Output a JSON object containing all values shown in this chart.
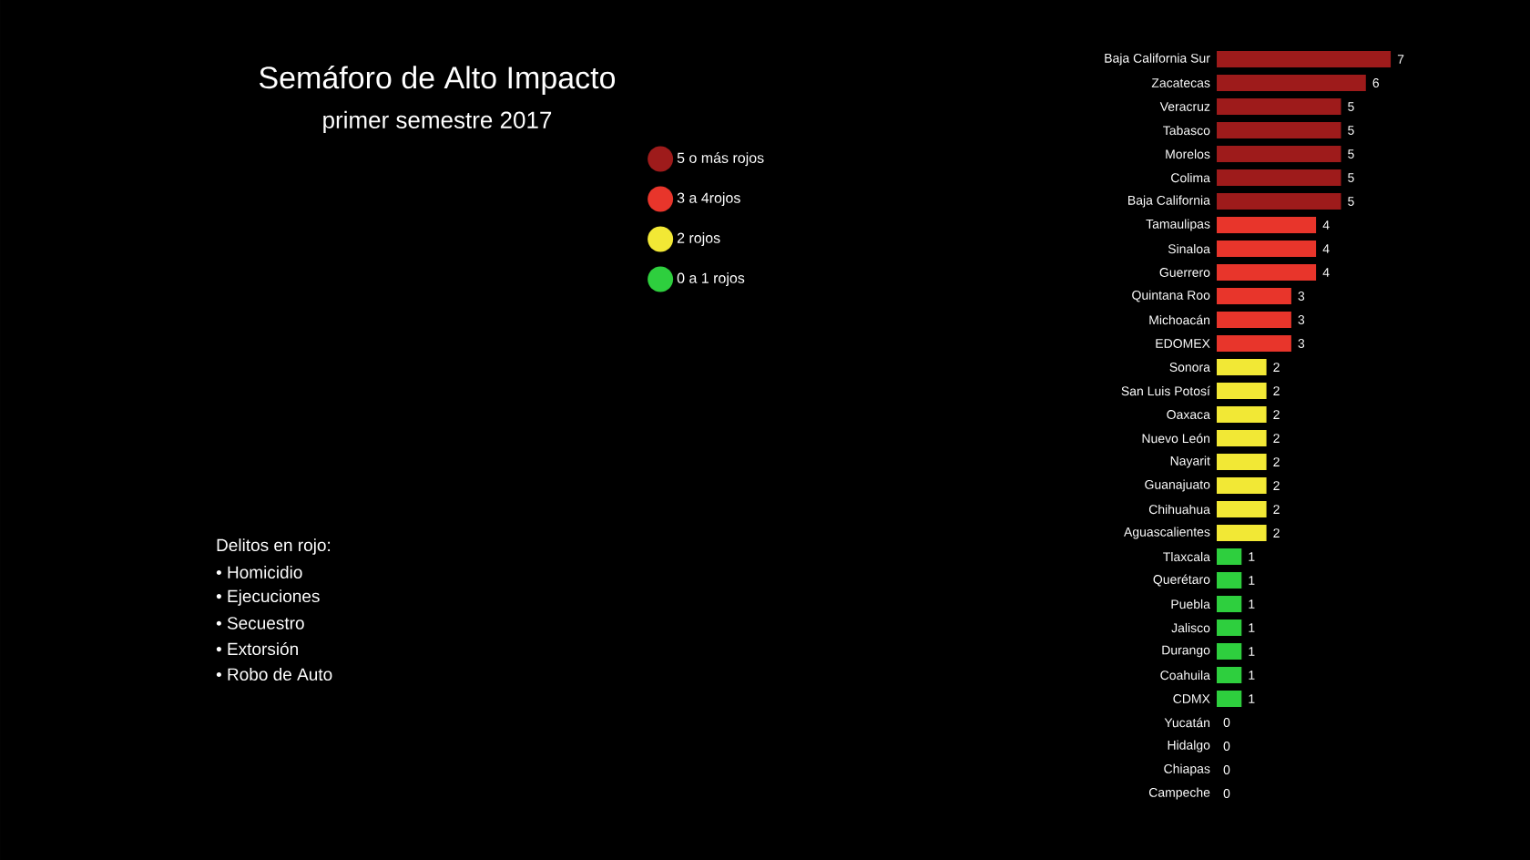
{
  "chart_data": {
    "type": "bar",
    "orientation": "horizontal",
    "title": "Semáforo de Alto Impacto",
    "subtitle": "primer semestre 2017",
    "categories": [
      "Baja California Sur",
      "Zacatecas",
      "Veracruz",
      "Tabasco",
      "Morelos",
      "Colima",
      "Baja California",
      "Tamaulipas",
      "Sinaloa",
      "Guerrero",
      "Quintana Roo",
      "Michoacán",
      "EDOMEX",
      "Sonora",
      "San Luis Potosí",
      "Oaxaca",
      "Nuevo León",
      "Nayarit",
      "Guanajuato",
      "Chihuahua",
      "Aguascalientes",
      "Tlaxcala",
      "Querétaro",
      "Puebla",
      "Jalisco",
      "Durango",
      "Coahuila",
      "CDMX",
      "Yucatán",
      "Hidalgo",
      "Chiapas",
      "Campeche"
    ],
    "series": [
      {
        "name": "5 o más rojos",
        "color": "#9e1b1b",
        "values": [
          7,
          6,
          5,
          5,
          5,
          5,
          5,
          null,
          null,
          null,
          null,
          null,
          null,
          null,
          null,
          null,
          null,
          null,
          null,
          null,
          null,
          null,
          null,
          null,
          null,
          null,
          null,
          null,
          null,
          null,
          null,
          null
        ]
      },
      {
        "name": "3 a 4rojos",
        "color": "#e8352b",
        "values": [
          null,
          null,
          null,
          null,
          null,
          null,
          null,
          4,
          4,
          4,
          3,
          3,
          3,
          null,
          null,
          null,
          null,
          null,
          null,
          null,
          null,
          null,
          null,
          null,
          null,
          null,
          null,
          null,
          null,
          null,
          null,
          null
        ]
      },
      {
        "name": "2 rojos",
        "color": "#f2e835",
        "values": [
          null,
          null,
          null,
          null,
          null,
          null,
          null,
          null,
          null,
          null,
          null,
          null,
          null,
          2,
          2,
          2,
          2,
          2,
          2,
          2,
          2,
          null,
          null,
          null,
          null,
          null,
          null,
          null,
          null,
          null,
          null,
          null
        ]
      },
      {
        "name": "0 a 1 rojos",
        "color": "#2ecf3e",
        "values": [
          null,
          null,
          null,
          null,
          null,
          null,
          null,
          null,
          null,
          null,
          null,
          null,
          null,
          null,
          null,
          null,
          null,
          null,
          null,
          null,
          null,
          1,
          1,
          1,
          1,
          1,
          1,
          1,
          0,
          0,
          0,
          0
        ]
      }
    ],
    "data_labels": true,
    "legend": "left",
    "annotations": [
      "Delitos en rojo:",
      "• Homicidio",
      "• Ejecuciones",
      "• Secuestro",
      "• Extorsión",
      "• Robo de Auto"
    ]
  }
}
